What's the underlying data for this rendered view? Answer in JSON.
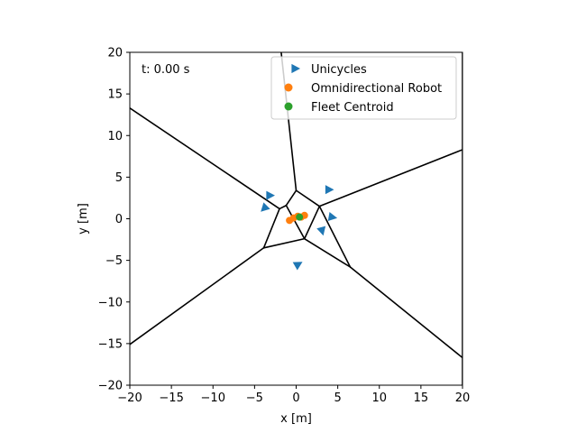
{
  "chart_data": {
    "type": "scatter",
    "title": "",
    "xlabel": "x [m]",
    "ylabel": "y [m]",
    "xlim": [
      -20,
      20
    ],
    "ylim": [
      -20,
      20
    ],
    "xticks": [
      -20,
      -15,
      -10,
      -5,
      0,
      5,
      10,
      15,
      20
    ],
    "yticks": [
      -20,
      -15,
      -10,
      -5,
      0,
      5,
      10,
      15,
      20
    ],
    "grid": false,
    "legend_position": "top-right",
    "annotation": "t: 0.00 s",
    "legend": [
      {
        "label": "Unicycles",
        "marker": "triangle-right",
        "color": "#1f77b4"
      },
      {
        "label": "Omnidirectional Robot",
        "marker": "circle",
        "color": "#ff7f0e"
      },
      {
        "label": "Fleet Centroid",
        "marker": "circle",
        "color": "#2ca02c"
      }
    ],
    "series": [
      {
        "name": "Unicycles",
        "color": "#1f77b4",
        "marker": "triangle",
        "points": [
          {
            "x": -3.2,
            "y": 2.8,
            "heading": 0
          },
          {
            "x": -3.8,
            "y": 1.3,
            "heading": 225
          },
          {
            "x": 3.9,
            "y": 3.5,
            "heading": 0
          },
          {
            "x": 4.3,
            "y": 0.2,
            "heading": 350
          },
          {
            "x": 3.1,
            "y": -1.4,
            "heading": 285
          },
          {
            "x": 0.2,
            "y": -5.5,
            "heading": 30
          }
        ]
      },
      {
        "name": "Omnidirectional Robot",
        "color": "#ff7f0e",
        "marker": "circle",
        "points": [
          {
            "x": -0.8,
            "y": -0.2
          },
          {
            "x": -0.3,
            "y": 0.1
          },
          {
            "x": 0.2,
            "y": 0.3
          },
          {
            "x": 0.6,
            "y": 0.2
          },
          {
            "x": 1.0,
            "y": 0.4
          }
        ]
      },
      {
        "name": "Fleet Centroid",
        "color": "#2ca02c",
        "marker": "circle",
        "points": [
          {
            "x": 0.4,
            "y": 0.2
          }
        ]
      }
    ],
    "voronoi_edges": {
      "color": "#000000",
      "segments": [
        [
          [
            -2.0,
            1.2
          ],
          [
            -1.2,
            1.6
          ]
        ],
        [
          [
            -1.2,
            1.6
          ],
          [
            0.0,
            3.4
          ]
        ],
        [
          [
            0.0,
            3.4
          ],
          [
            2.8,
            1.5
          ]
        ],
        [
          [
            2.8,
            1.5
          ],
          [
            1.0,
            -2.4
          ]
        ],
        [
          [
            1.0,
            -2.4
          ],
          [
            -1.2,
            1.6
          ]
        ],
        [
          [
            -2.0,
            1.2
          ],
          [
            -3.9,
            -3.5
          ]
        ],
        [
          [
            -3.9,
            -3.5
          ],
          [
            1.0,
            -2.4
          ]
        ],
        [
          [
            1.0,
            -2.4
          ],
          [
            6.5,
            -5.8
          ]
        ],
        [
          [
            6.5,
            -5.8
          ],
          [
            2.8,
            1.5
          ]
        ],
        [
          [
            2.8,
            1.5
          ],
          [
            20,
            8.3
          ]
        ],
        [
          [
            6.5,
            -5.8
          ],
          [
            20,
            -16.7
          ]
        ],
        [
          [
            -3.9,
            -3.5
          ],
          [
            -20,
            -15.1
          ]
        ],
        [
          [
            -2.0,
            1.2
          ],
          [
            -20,
            13.3
          ]
        ],
        [
          [
            0.0,
            3.4
          ],
          [
            -1.8,
            20
          ]
        ],
        [
          [
            20,
            20
          ],
          [
            20,
            -20
          ]
        ]
      ]
    }
  }
}
